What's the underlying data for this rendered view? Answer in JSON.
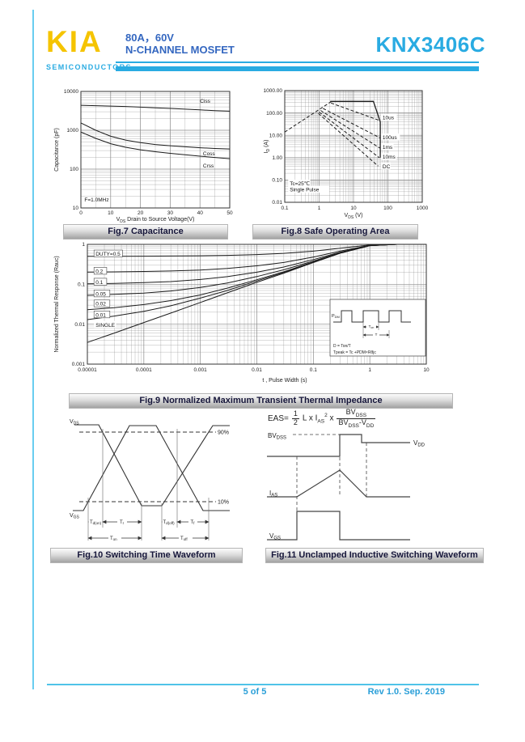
{
  "header": {
    "logo": "KIA",
    "logo_subtitle": "SEMICONDUCTORS",
    "rating": "80A，60V",
    "device_type": "N-CHANNEL MOSFET",
    "part_number": "KNX3406C"
  },
  "colors": {
    "accent_cyan": "#29abe2",
    "logo_yellow": "#f5c400",
    "title_blue": "#3467c0",
    "caption_text": "#16163a"
  },
  "footer": {
    "page_indicator": "5 of 5",
    "revision": "Rev 1.0. Sep. 2019"
  },
  "figures": {
    "fig7": {
      "caption": "Fig.7 Capacitance",
      "ylabel": "Capacitance (pF)",
      "xlabel_base": "V",
      "xlabel_sub": "DS",
      "xlabel_rest": " Drain to Source Voltage(V)"
    },
    "fig8": {
      "caption": "Fig.8 Safe Operating Area",
      "ylabel_base": "I",
      "ylabel_sub": "D",
      "ylabel_rest": " (A)",
      "xlabel_base": "V",
      "xlabel_sub": "DS",
      "xlabel_rest": " (V)"
    },
    "fig9": {
      "caption": "Fig.9 Normalized Maximum Transient Thermal Impedance",
      "ylabel": "Normalized Thermal Response (Rauc)",
      "xlabel": "t , Pulse Width (s)",
      "inset": {
        "pdm_b": "P",
        "pdm_s": "DM",
        "ton_b": "T",
        "ton_s": "on",
        "t": "T",
        "f1": "D = Ton/T",
        "f2": "Tpeak = Tc +PDM×Rθjc"
      }
    },
    "fig10": {
      "caption": "Fig.10 Switching Time Waveform",
      "vds_b": "V",
      "vds_s": "DS",
      "vgs_b": "V",
      "vgs_s": "GS",
      "p90": "90%",
      "p10": "10%",
      "tdon_b": "T",
      "tdon_s": "d(on)",
      "tr_b": "T",
      "tr_s": "r",
      "tdoff_b": "T",
      "tdoff_s": "d(off)",
      "tf_b": "T",
      "tf_s": "f",
      "ton_b": "T",
      "ton_s": "on",
      "toff_b": "T",
      "toff_s": "off"
    },
    "fig11": {
      "caption": "Fig.11 Unclamped Inductive Switching Waveform",
      "formula": {
        "eas": "EAS=",
        "n1": "1",
        "d1": "2",
        "body": "L x I",
        "bsub": "AS",
        "bsup": "2",
        "times": "x",
        "n2b": "BV",
        "n2s": "DSS",
        "d2b1": "BV",
        "d2s1": "DSS",
        "d2b2": "-V",
        "d2s2": "DD"
      },
      "bv_b": "BV",
      "bv_s": "DSS",
      "vdd_b": "V",
      "vdd_s": "DD",
      "ias_b": "I",
      "ias_s": "AS",
      "vgs_b": "V",
      "vgs_s": "GS"
    }
  },
  "chart_data": [
    {
      "id": "fig7",
      "type": "line",
      "title": "Fig.7 Capacitance",
      "xlabel": "VDS Drain to Source Voltage(V)",
      "ylabel": "Capacitance (pF)",
      "xscale": "linear",
      "yscale": "log",
      "xlim": [
        0,
        50
      ],
      "ylim": [
        10,
        10000
      ],
      "xticks": [
        0,
        10,
        20,
        30,
        40,
        50
      ],
      "xtick_labels": [
        "0",
        "10",
        "20",
        "30",
        "40",
        "50"
      ],
      "yticks": [
        10000,
        1000,
        100,
        10
      ],
      "ytick_labels": [
        "10000",
        "1000",
        "100",
        "10"
      ],
      "x": [
        0,
        5,
        10,
        15,
        20,
        25,
        30,
        35,
        40,
        45,
        50
      ],
      "series": [
        {
          "name": "Ciss",
          "values": [
            4400,
            4300,
            4200,
            4100,
            3950,
            3800,
            3650,
            3500,
            3350,
            3200,
            3100
          ]
        },
        {
          "name": "Coss",
          "values": [
            1550,
            1000,
            700,
            560,
            480,
            430,
            400,
            375,
            355,
            340,
            330
          ]
        },
        {
          "name": "Crss",
          "values": [
            900,
            620,
            450,
            365,
            315,
            280,
            255,
            235,
            215,
            200,
            186
          ]
        }
      ],
      "series_labels": [
        {
          "text": "Ciss",
          "x": 40,
          "y": 5600
        },
        {
          "text": "Coss",
          "x": 41,
          "y": 250
        },
        {
          "text": "Crss",
          "x": 41,
          "y": 120
        }
      ],
      "annotations": [
        {
          "text": "F=1.0MHz",
          "x": 1.2,
          "y": 16
        }
      ]
    },
    {
      "id": "fig8",
      "type": "line",
      "title": "Fig.8 Safe Operating Area",
      "xlabel": "VDS (V)",
      "ylabel": "ID (A)",
      "xscale": "log",
      "yscale": "log",
      "xlim": [
        0.1,
        1000
      ],
      "ylim": [
        0.01,
        1000
      ],
      "xticks": [
        0.1,
        1,
        10,
        100,
        1000
      ],
      "xtick_labels": [
        "0.1",
        "1",
        "10",
        "100",
        "1000"
      ],
      "yticks": [
        1000,
        100,
        10,
        1,
        0.1,
        0.01
      ],
      "ytick_labels": [
        "1000.00",
        "100.00",
        "10.00",
        "1.00",
        "0.10",
        "0.01"
      ],
      "series": [
        {
          "name": "current-limit",
          "dash": false,
          "w": 1.3,
          "points": [
            [
              2.1,
              330
            ],
            [
              38,
              330
            ],
            [
              60,
              40
            ],
            [
              60,
              1.0
            ]
          ]
        },
        {
          "name": "rdson-limit",
          "dash": true,
          "points": [
            [
              0.1,
              14
            ],
            [
              2.3,
              330
            ]
          ]
        },
        {
          "name": "10us",
          "dash": true,
          "points": [
            [
              2.2,
              280
            ],
            [
              60,
              45
            ]
          ]
        },
        {
          "name": "100us",
          "dash": true,
          "points": [
            [
              1.3,
              160
            ],
            [
              60,
              7.5
            ]
          ]
        },
        {
          "name": "1ms",
          "dash": true,
          "points": [
            [
              1.1,
              130
            ],
            [
              58,
              2.7
            ]
          ]
        },
        {
          "name": "10ms",
          "dash": true,
          "points": [
            [
              1.0,
              110
            ],
            [
              56,
              1.0
            ]
          ]
        },
        {
          "name": "DC",
          "dash": true,
          "points": [
            [
              0.95,
              95
            ],
            [
              52,
              0.42
            ]
          ]
        }
      ],
      "series_labels": [
        {
          "text": "10us",
          "x": 70,
          "y": 60,
          "box": true
        },
        {
          "text": "100us",
          "x": 70,
          "y": 8,
          "box": true
        },
        {
          "text": "1ms",
          "x": 70,
          "y": 2.9,
          "box": true
        },
        {
          "text": "10ms",
          "x": 70,
          "y": 1.05,
          "box": true
        },
        {
          "text": "DC",
          "x": 70,
          "y": 0.4,
          "box": true
        }
      ],
      "annotations": [
        {
          "text": "Tc=25℃",
          "x": 0.14,
          "y": 0.068,
          "box": true
        },
        {
          "text": "Single Pulse",
          "x": 0.14,
          "y": 0.036,
          "box": true
        }
      ]
    },
    {
      "id": "fig9",
      "type": "line",
      "title": "Fig.9 Normalized Maximum Transient Thermal Impedance",
      "xlabel": "t , Pulse Width (s)",
      "ylabel": "Normalized Thermal Response (Rauc)",
      "xscale": "log",
      "yscale": "log",
      "xlim": [
        1e-05,
        10
      ],
      "ylim": [
        0.001,
        1
      ],
      "xticks": [
        1e-05,
        0.0001,
        0.001,
        0.01,
        0.1,
        1,
        10
      ],
      "xtick_labels": [
        "0.00001",
        "0.0001",
        "0.001",
        "0.01",
        "0.1",
        "1",
        "10"
      ],
      "yticks": [
        1,
        0.1,
        0.01,
        0.001
      ],
      "ytick_labels": [
        "1",
        "0.1",
        "0.01",
        "0.001"
      ],
      "x": [
        1e-05,
        3e-05,
        0.0001,
        0.0003,
        0.001,
        0.003,
        0.01,
        0.03,
        0.1,
        0.3,
        1,
        3,
        10
      ],
      "series": [
        {
          "name": "DUTY=0.5",
          "values": [
            0.502,
            0.503,
            0.506,
            0.51,
            0.518,
            0.531,
            0.556,
            0.595,
            0.675,
            0.8,
            0.965,
            1,
            1
          ]
        },
        {
          "name": "0.2",
          "values": [
            0.203,
            0.205,
            0.209,
            0.215,
            0.228,
            0.249,
            0.29,
            0.352,
            0.48,
            0.68,
            0.944,
            1,
            1
          ]
        },
        {
          "name": "0.1",
          "values": [
            0.103,
            0.105,
            0.11,
            0.117,
            0.132,
            0.155,
            0.201,
            0.271,
            0.415,
            0.64,
            0.937,
            1,
            1
          ]
        },
        {
          "name": "0.05",
          "values": [
            0.053,
            0.056,
            0.06,
            0.068,
            0.083,
            0.108,
            0.156,
            0.231,
            0.383,
            0.62,
            0.934,
            1,
            1
          ]
        },
        {
          "name": "0.02",
          "values": [
            0.023,
            0.026,
            0.031,
            0.039,
            0.054,
            0.08,
            0.13,
            0.206,
            0.363,
            0.608,
            0.931,
            1,
            1
          ]
        },
        {
          "name": "0.01",
          "values": [
            0.013,
            0.016,
            0.021,
            0.029,
            0.045,
            0.07,
            0.121,
            0.198,
            0.356,
            0.604,
            0.93,
            1,
            1
          ]
        },
        {
          "name": "SINGLE",
          "values": [
            0.0035,
            0.006,
            0.011,
            0.019,
            0.035,
            0.061,
            0.112,
            0.19,
            0.35,
            0.6,
            0.93,
            1,
            1
          ]
        }
      ],
      "series_labels": [
        {
          "text": "DUTY=0.5",
          "x": 1.4e-05,
          "y": 0.57,
          "box": true,
          "border": true
        },
        {
          "text": "0.2",
          "x": 1.4e-05,
          "y": 0.21,
          "box": true,
          "border": true
        },
        {
          "text": "0.1",
          "x": 1.4e-05,
          "y": 0.112,
          "box": true,
          "border": true
        },
        {
          "text": "0.05",
          "x": 1.4e-05,
          "y": 0.057,
          "box": true,
          "border": true
        },
        {
          "text": "0.02",
          "x": 1.4e-05,
          "y": 0.032,
          "box": true,
          "border": true
        },
        {
          "text": "0.01",
          "x": 1.4e-05,
          "y": 0.017,
          "box": true,
          "border": true
        },
        {
          "text": "SINGLE",
          "x": 1.4e-05,
          "y": 0.0095,
          "box": true
        }
      ],
      "annotations": []
    }
  ]
}
